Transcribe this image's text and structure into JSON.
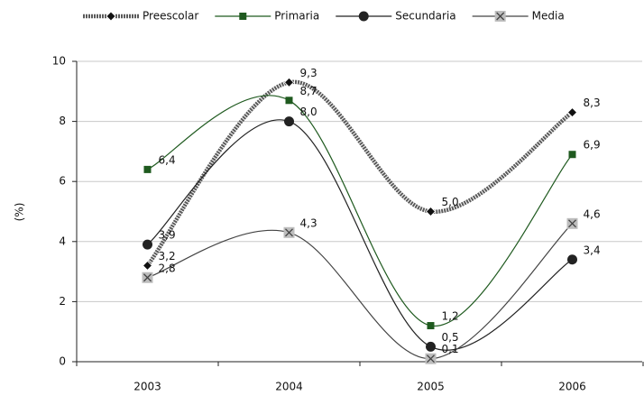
{
  "chart_data": {
    "type": "line",
    "y_label": "(%)",
    "categories": [
      "2003",
      "2004",
      "2005",
      "2006"
    ],
    "ylim": [
      0,
      10
    ],
    "yticks": [
      0,
      2,
      4,
      6,
      8,
      10
    ],
    "grid": true,
    "smooth": true,
    "legend": "top",
    "series": [
      {
        "name": "Preescolar",
        "color": "#5a5a5a",
        "marker": "diamond",
        "values": [
          3.2,
          9.3,
          5.0,
          8.3
        ],
        "value_labels": [
          "3,2",
          "9,3",
          "5,0",
          "8,3"
        ]
      },
      {
        "name": "Primaria",
        "color": "#1f5a1f",
        "marker": "square",
        "values": [
          6.4,
          8.7,
          1.2,
          6.9
        ],
        "value_labels": [
          "6,4",
          "8,7",
          "1,2",
          "6,9"
        ]
      },
      {
        "name": "Secundaria",
        "color": "#222222",
        "marker": "circle",
        "values": [
          3.9,
          8.0,
          0.5,
          3.4
        ],
        "value_labels": [
          "3,9",
          "8,0",
          "0,5",
          "3,4"
        ]
      },
      {
        "name": "Media",
        "color": "#444444",
        "marker": "xsquare",
        "values": [
          2.8,
          4.3,
          0.1,
          4.6
        ],
        "value_labels": [
          "2,8",
          "4,3",
          "0,1",
          "4,6"
        ]
      }
    ]
  }
}
